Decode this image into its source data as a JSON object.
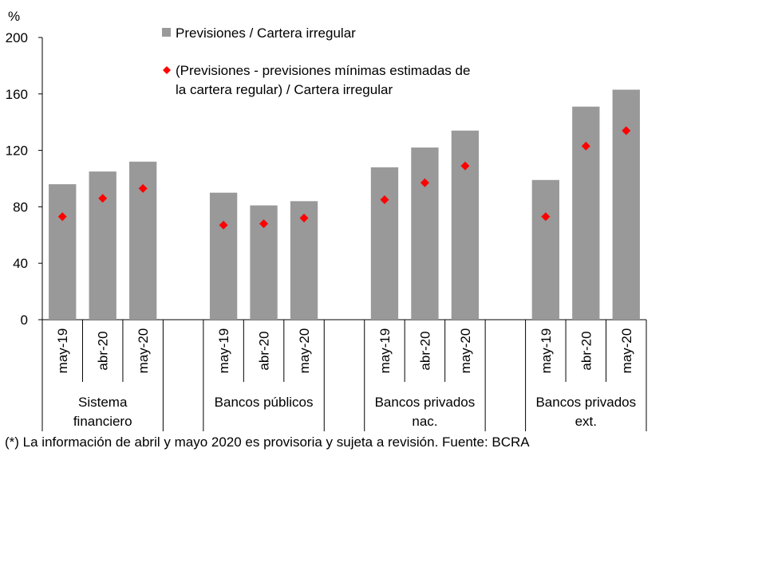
{
  "chart_data": {
    "type": "bar",
    "unit_label": "%",
    "ylim": [
      0,
      200
    ],
    "yticks": [
      0,
      40,
      80,
      120,
      160,
      200
    ],
    "grid": false,
    "legend_position": "top",
    "groups": [
      {
        "label_lines": [
          "Sistema",
          "financiero"
        ],
        "categories": [
          "may-19",
          "abr-20",
          "may-20"
        ]
      },
      {
        "label_lines": [
          "Bancos públicos"
        ],
        "categories": [
          "may-19",
          "abr-20",
          "may-20"
        ]
      },
      {
        "label_lines": [
          "Bancos privados",
          "nac."
        ],
        "categories": [
          "may-19",
          "abr-20",
          "may-20"
        ]
      },
      {
        "label_lines": [
          "Bancos privados",
          "ext."
        ],
        "categories": [
          "may-19",
          "abr-20",
          "may-20"
        ]
      }
    ],
    "series": [
      {
        "name": "Previsiones / Cartera irregular",
        "kind": "bar",
        "color": "#999999",
        "values": [
          96,
          105,
          112,
          90,
          81,
          84,
          108,
          122,
          134,
          99,
          151,
          163
        ]
      },
      {
        "name_lines": [
          "(Previsiones - previsiones mínimas estimadas de",
          "la cartera regular) / Cartera irregular"
        ],
        "kind": "marker",
        "marker": "diamond",
        "color": "#ff0000",
        "values": [
          73,
          86,
          93,
          67,
          68,
          72,
          85,
          97,
          109,
          73,
          123,
          134
        ]
      }
    ]
  },
  "footnote": "(*) La información de abril y mayo 2020 es provisoria y sujeta a revisión. Fuente: BCRA"
}
